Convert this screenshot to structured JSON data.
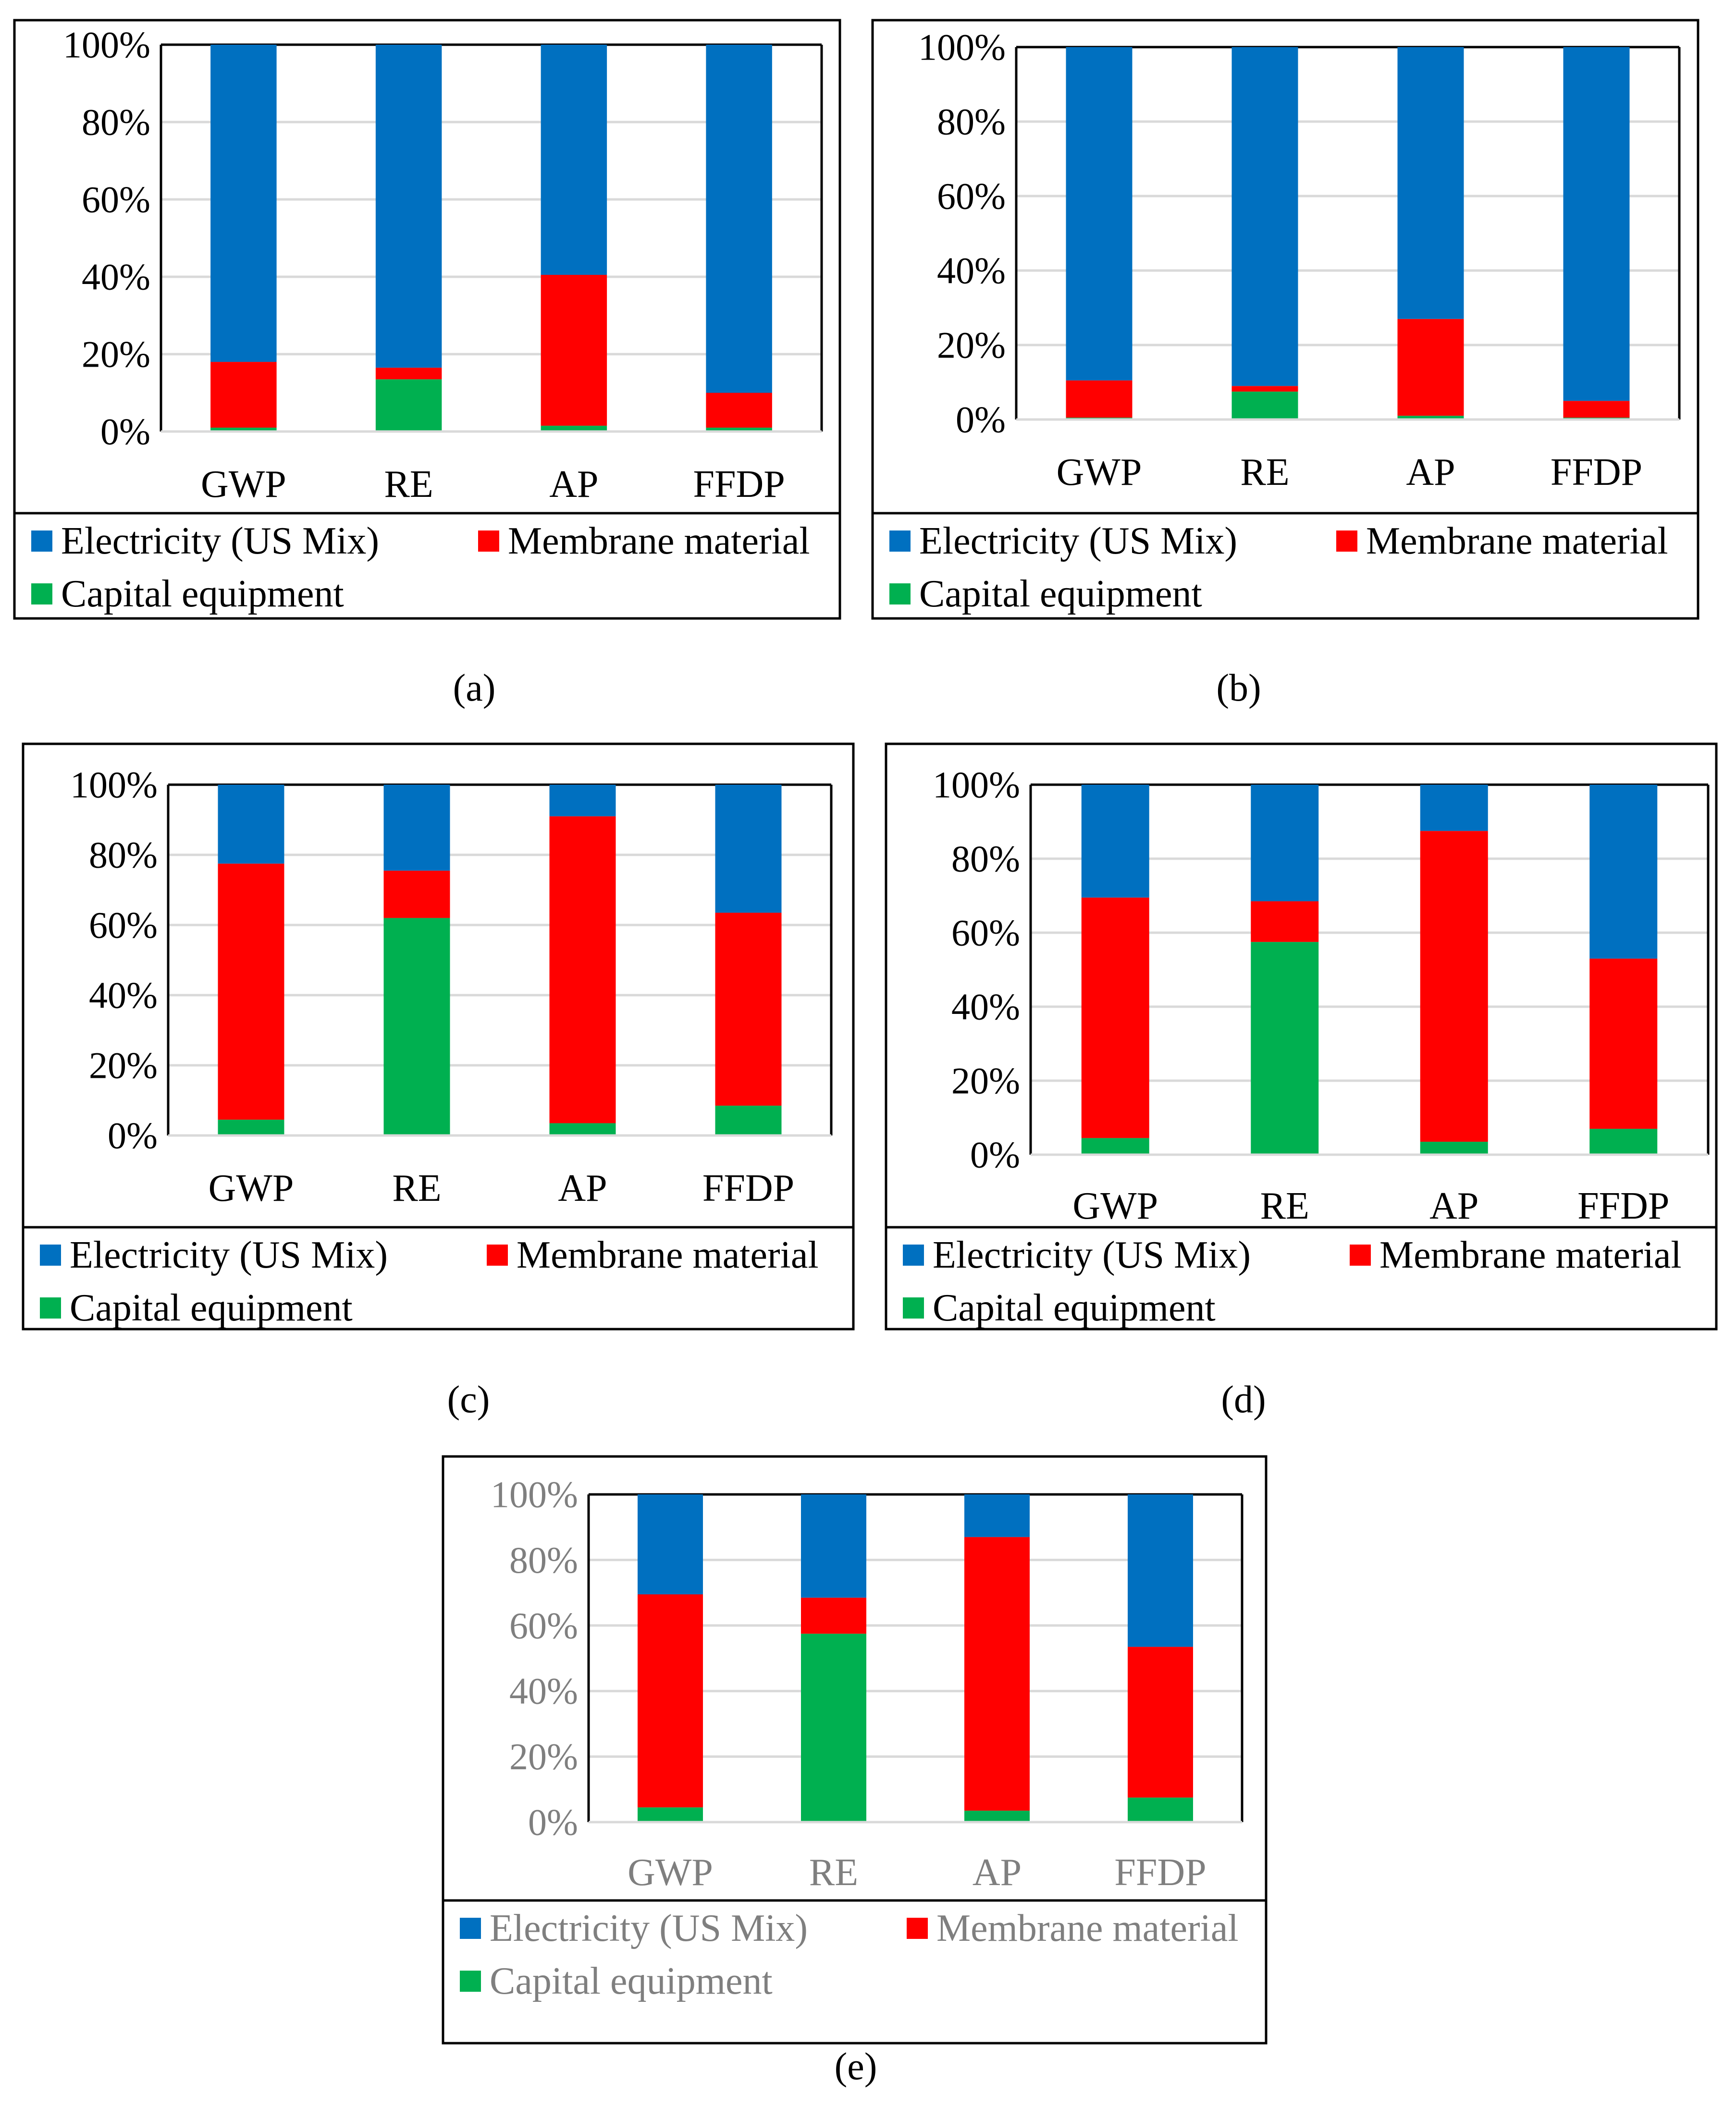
{
  "colors": {
    "electricity": "#0070C0",
    "membrane": "#FF0000",
    "capital": "#00B050",
    "grid": "#D9D9D9",
    "frame": "#000000",
    "text": "#000000",
    "text_muted": "#7F7F7F"
  },
  "chart_data": [
    {
      "type": "bar",
      "stacked": true,
      "caption": "(a)",
      "categories": [
        "GWP",
        "RE",
        "AP",
        "FFDP"
      ],
      "yticks": [
        "0%",
        "20%",
        "40%",
        "60%",
        "80%",
        "100%"
      ],
      "ylim": [
        0,
        100
      ],
      "grid": true,
      "legend_position": "bottom",
      "series": [
        {
          "name": "Capital equipment",
          "color": "#00B050",
          "values": [
            1,
            13.5,
            1.5,
            1
          ]
        },
        {
          "name": "Membrane material",
          "color": "#FF0000",
          "values": [
            17,
            3,
            39,
            9
          ]
        },
        {
          "name": "Electricity (US Mix)",
          "color": "#0070C0",
          "values": [
            82,
            83.5,
            59.5,
            90
          ]
        }
      ]
    },
    {
      "type": "bar",
      "stacked": true,
      "caption": "(b)",
      "categories": [
        "GWP",
        "RE",
        "AP",
        "FFDP"
      ],
      "yticks": [
        "0%",
        "20%",
        "40%",
        "60%",
        "80%",
        "100%"
      ],
      "ylim": [
        0,
        100
      ],
      "grid": true,
      "legend_position": "bottom",
      "series": [
        {
          "name": "Capital equipment",
          "color": "#00B050",
          "values": [
            0.5,
            7.5,
            1,
            0.5
          ]
        },
        {
          "name": "Membrane material",
          "color": "#FF0000",
          "values": [
            10,
            1.5,
            26,
            4.5
          ]
        },
        {
          "name": "Electricity (US Mix)",
          "color": "#0070C0",
          "values": [
            89.5,
            91,
            73,
            95
          ]
        }
      ]
    },
    {
      "type": "bar",
      "stacked": true,
      "caption": "(c)",
      "categories": [
        "GWP",
        "RE",
        "AP",
        "FFDP"
      ],
      "yticks": [
        "0%",
        "20%",
        "40%",
        "60%",
        "80%",
        "100%"
      ],
      "ylim": [
        0,
        100
      ],
      "grid": true,
      "legend_position": "bottom",
      "series": [
        {
          "name": "Capital equipment",
          "color": "#00B050",
          "values": [
            4.5,
            62,
            3.5,
            8.5
          ]
        },
        {
          "name": "Membrane material",
          "color": "#FF0000",
          "values": [
            73,
            13.5,
            87.5,
            55
          ]
        },
        {
          "name": "Electricity (US Mix)",
          "color": "#0070C0",
          "values": [
            22.5,
            24.5,
            9,
            36.5
          ]
        }
      ]
    },
    {
      "type": "bar",
      "stacked": true,
      "caption": "(d)",
      "categories": [
        "GWP",
        "RE",
        "AP",
        "FFDP"
      ],
      "yticks": [
        "0%",
        "20%",
        "40%",
        "60%",
        "80%",
        "100%"
      ],
      "ylim": [
        0,
        100
      ],
      "grid": true,
      "legend_position": "bottom",
      "series": [
        {
          "name": "Capital equipment",
          "color": "#00B050",
          "values": [
            4.5,
            57.5,
            3.5,
            7
          ]
        },
        {
          "name": "Membrane material",
          "color": "#FF0000",
          "values": [
            65,
            11,
            84,
            46
          ]
        },
        {
          "name": "Electricity (US Mix)",
          "color": "#0070C0",
          "values": [
            30.5,
            31.5,
            12.5,
            47
          ]
        }
      ]
    },
    {
      "type": "bar",
      "stacked": true,
      "caption": "(e)",
      "categories": [
        "GWP",
        "RE",
        "AP",
        "FFDP"
      ],
      "yticks": [
        "0%",
        "20%",
        "40%",
        "60%",
        "80%",
        "100%"
      ],
      "ylim": [
        0,
        100
      ],
      "grid": true,
      "legend_position": "bottom",
      "series": [
        {
          "name": "Capital equipment",
          "color": "#00B050",
          "values": [
            4.5,
            57.5,
            3.5,
            7.5
          ]
        },
        {
          "name": "Membrane material",
          "color": "#FF0000",
          "values": [
            65,
            11,
            83.5,
            46
          ]
        },
        {
          "name": "Electricity (US Mix)",
          "color": "#0070C0",
          "values": [
            30.5,
            31.5,
            13,
            46.5
          ]
        }
      ]
    }
  ]
}
